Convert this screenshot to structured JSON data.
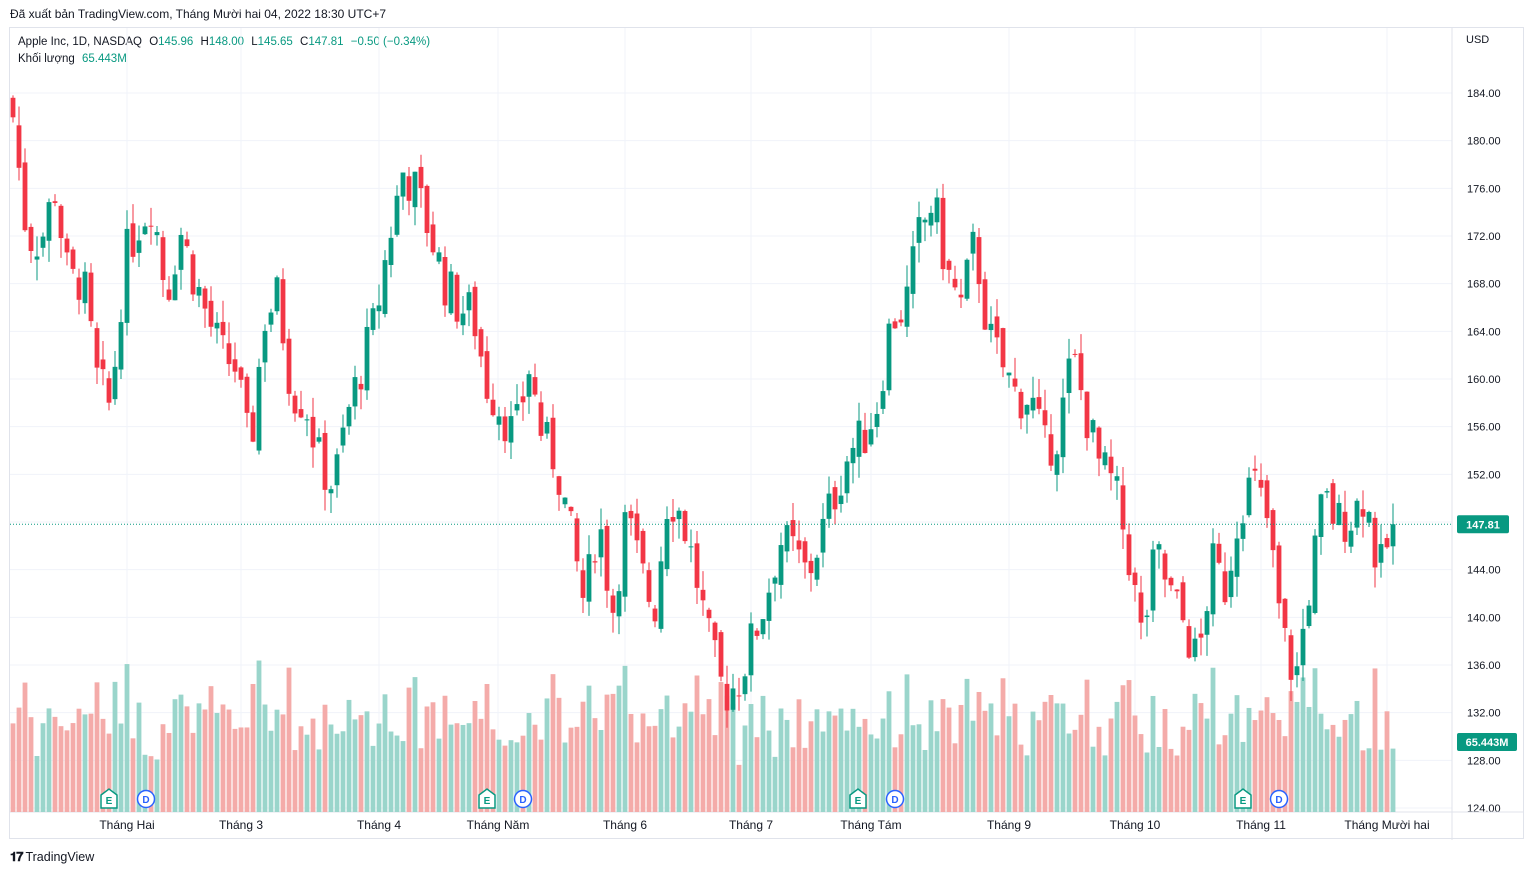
{
  "header": {
    "export_line": "Đã xuất bản TradingView.com, Tháng Mười hai 04, 2022 18:30 UTC+7"
  },
  "legend": {
    "symbol": "Apple Inc, 1D, NASDAQ",
    "open_label": "O",
    "open": "145.96",
    "high_label": "H",
    "high": "148.00",
    "low_label": "L",
    "low": "145.65",
    "close": "147.81",
    "change": "−0.50 (−0.34%)",
    "volume_label": "Khối lượng",
    "volume": "65.443M"
  },
  "axis": {
    "currency": "USD",
    "price_ticks": [
      "184.00",
      "180.00",
      "176.00",
      "172.00",
      "168.00",
      "164.00",
      "160.00",
      "156.00",
      "152.00",
      "148.00",
      "144.00",
      "140.00",
      "136.00",
      "132.00",
      "128.00",
      "124.00"
    ],
    "last_price_label": "147.81",
    "last_volume_label": "65.443M",
    "month_labels": [
      "Tháng Hai",
      "Tháng 3",
      "Tháng 4",
      "Tháng Năm",
      "Tháng 6",
      "Tháng 7",
      "Tháng Tám",
      "Tháng 9",
      "Tháng 10",
      "Tháng 11",
      "Tháng Mười hai"
    ]
  },
  "colors": {
    "up": "#089981",
    "down": "#f23645",
    "up_volume": "#9ad5cb",
    "down_volume": "#f4aba9",
    "grid": "#f0f3fa"
  },
  "brand": {
    "name": "TradingView",
    "logo_icon": "tradingview-logo-icon"
  },
  "chart_data": {
    "type": "candlestick",
    "symbol": "AAPL",
    "interval": "1D",
    "ylim": [
      124,
      186
    ],
    "x_labels": [
      "Tháng Hai",
      "Tháng 3",
      "Tháng 4",
      "Tháng Năm",
      "Tháng 6",
      "Tháng 7",
      "Tháng Tám",
      "Tháng 9",
      "Tháng 10",
      "Tháng 11",
      "Tháng Mười hai"
    ],
    "last_close": 147.81,
    "last_volume": "65.443M",
    "event_markers": [
      {
        "type": "E",
        "near": "Tháng Hai"
      },
      {
        "type": "D",
        "near": "Tháng Hai"
      },
      {
        "type": "E",
        "near": "Tháng Năm"
      },
      {
        "type": "D",
        "near": "Tháng Năm"
      },
      {
        "type": "E",
        "near": "Tháng Tám"
      },
      {
        "type": "D",
        "near": "Tháng Tám"
      },
      {
        "type": "E",
        "near": "Tháng 11"
      },
      {
        "type": "D",
        "near": "Tháng 11"
      }
    ],
    "close_path": [
      182.0,
      172.0,
      171.5,
      176.0,
      168.0,
      168.5,
      160.0,
      157.5,
      170.0,
      173.0,
      175.0,
      167.0,
      172.5,
      168.5,
      165.0,
      162.0,
      161.0,
      153.5,
      165.0,
      167.0,
      159.0,
      158.0,
      153.0,
      151.0,
      157.0,
      161.0,
      165.0,
      172.0,
      177.5,
      175.5,
      172.0,
      168.0,
      166.0,
      165.5,
      159.5,
      157.5,
      155.0,
      161.0,
      155.0,
      153.0,
      147.0,
      141.0,
      148.5,
      140.5,
      148.5,
      144.0,
      140.5,
      150.5,
      148.5,
      143.5,
      137.5,
      133.5,
      134.5,
      138.0,
      141.5,
      146.5,
      145.5,
      143.5,
      147.0,
      150.5,
      154.0,
      155.0,
      158.0,
      165.0,
      166.0,
      172.0,
      175.0,
      169.0,
      166.0,
      171.5,
      163.5,
      161.0,
      158.5,
      158.5,
      154.0,
      155.5,
      162.0,
      157.0,
      152.5,
      151.0,
      145.5,
      138.0,
      145.5,
      142.0,
      139.5,
      136.0,
      144.5,
      142.5,
      149.5,
      151.5,
      148.0,
      139.0,
      134.5,
      142.5,
      150.0,
      148.0,
      148.5,
      150.5,
      143.5,
      147.81
    ],
    "volume_range_M": [
      35,
      190
    ]
  }
}
